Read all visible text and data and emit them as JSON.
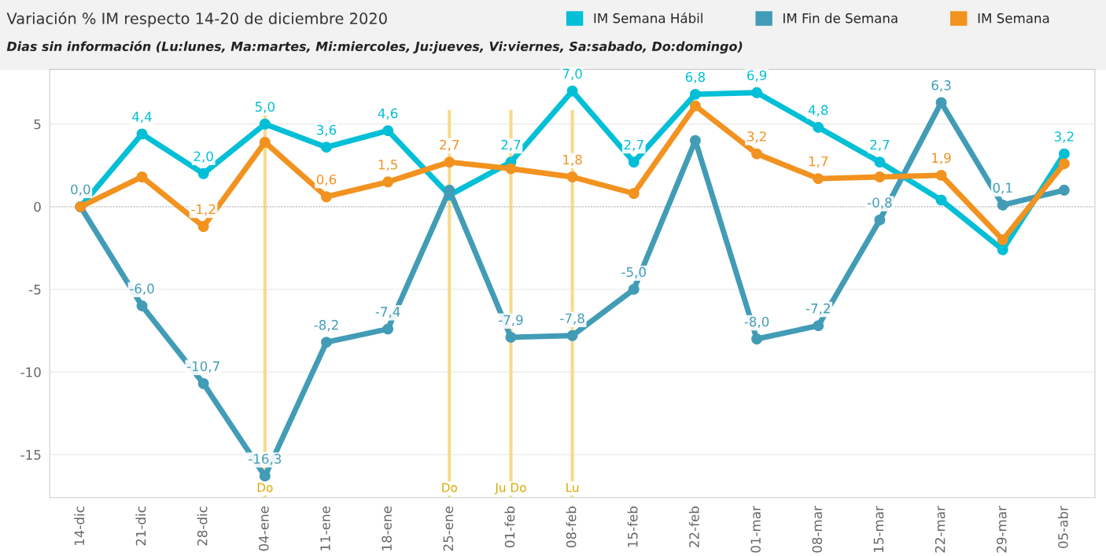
{
  "chart_data": {
    "type": "line",
    "title": "Variación % IM respecto 14-20 de diciembre 2020",
    "subtitle": "Dias sin información (Lu:lunes, Ma:martes, Mi:miercoles, Ju:jueves, Vi:viernes, Sa:sabado, Do:domingo)",
    "categories": [
      "14-dic",
      "21-dic",
      "28-dic",
      "04-ene",
      "11-ene",
      "18-ene",
      "25-ene",
      "01-feb",
      "08-feb",
      "15-feb",
      "22-feb",
      "01-mar",
      "08-mar",
      "15-mar",
      "22-mar",
      "29-mar",
      "05-abr"
    ],
    "series": [
      {
        "name": "IM Semana Hábil",
        "color": "#00bfd6",
        "values": [
          0.0,
          4.4,
          2.0,
          5.0,
          3.6,
          4.6,
          0.7,
          2.7,
          7.0,
          2.7,
          6.8,
          6.9,
          4.8,
          2.7,
          0.4,
          -2.6,
          3.2
        ],
        "value_labels": [
          null,
          "4,4",
          "2,0",
          "5,0",
          "3,6",
          "4,6",
          null,
          "2,7",
          "7,0",
          "2,7",
          "6,8",
          "6,9",
          "4,8",
          "2,7",
          null,
          null,
          "3,2"
        ]
      },
      {
        "name": "IM Fin de Semana",
        "color": "#429cb6",
        "values": [
          0.0,
          -6.0,
          -10.7,
          -16.3,
          -8.2,
          -7.4,
          1.0,
          -7.9,
          -7.8,
          -5.0,
          4.0,
          -8.0,
          -7.2,
          -0.8,
          6.3,
          0.1,
          1.0
        ],
        "value_labels": [
          "0,0",
          "-6,0",
          "-10,7",
          "-16,3",
          "-8,2",
          "-7,4",
          null,
          "-7,9",
          "-7,8",
          "-5,0",
          null,
          "-8,0",
          "-7,2",
          "-0,8",
          "6,3",
          "0,1",
          null
        ]
      },
      {
        "name": "IM Semana",
        "color": "#f2921f",
        "values": [
          0.0,
          1.8,
          -1.2,
          3.9,
          0.6,
          1.5,
          2.7,
          2.3,
          1.8,
          0.8,
          6.1,
          3.2,
          1.7,
          1.8,
          1.9,
          -2.0,
          2.6
        ],
        "value_labels": [
          null,
          null,
          "-1,2",
          null,
          "0,6",
          "1,5",
          "2,7",
          null,
          "1,8",
          null,
          null,
          "3,2",
          "1,7",
          null,
          "1,9",
          null,
          null
        ]
      }
    ],
    "ylim": [
      -17.6,
      8.3
    ],
    "yticks": [
      -15,
      -10,
      -5,
      0,
      5
    ],
    "grid": "y",
    "legend": "top right",
    "marker": "circle",
    "line_style": "solid",
    "ref_lines": [
      {
        "axis": "x",
        "value": "04-ene",
        "label": "Do",
        "color": "#f5dc8c"
      },
      {
        "axis": "x",
        "value": "25-ene",
        "label": "Do",
        "color": "#f5dc8c"
      },
      {
        "axis": "x",
        "value": "01-feb",
        "label": "Ju Do",
        "color": "#f5dc8c"
      },
      {
        "axis": "x",
        "value": "08-feb",
        "label": "Lu",
        "color": "#f5dc8c"
      },
      {
        "axis": "y",
        "value": 0,
        "color": "#b4b4b4",
        "line_style": "dotted"
      }
    ]
  }
}
